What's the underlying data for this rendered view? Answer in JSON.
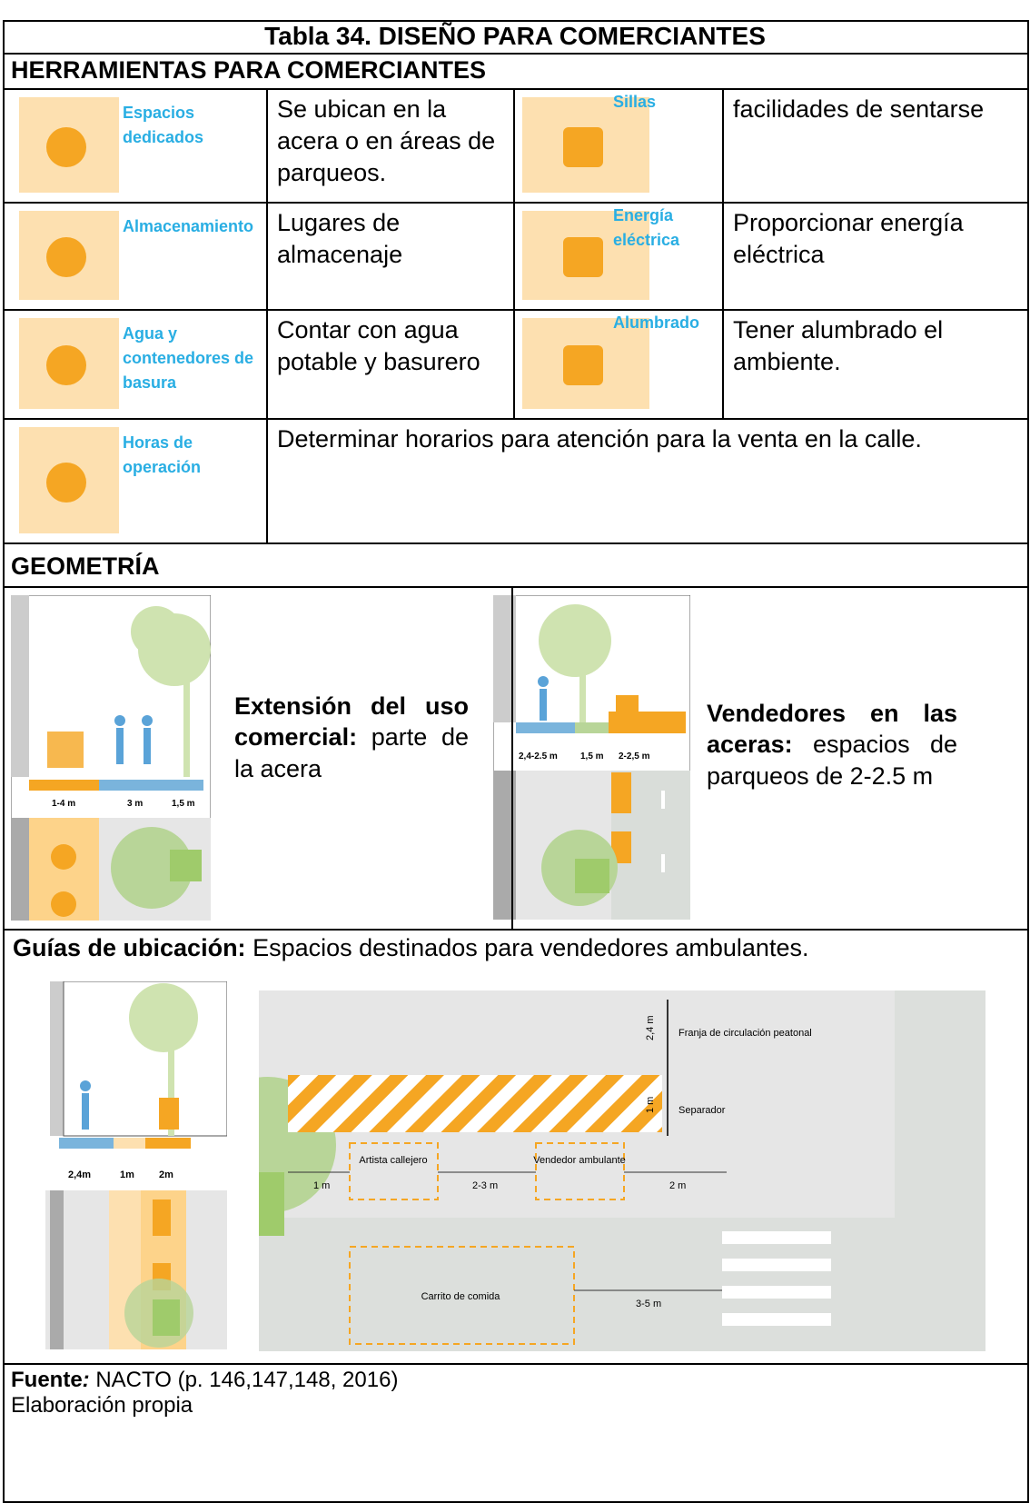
{
  "title": "Tabla 34.  DISEÑO PARA COMERCIANTES",
  "tools": {
    "heading": "HERRAMIENTAS PARA COMERCIANTES",
    "items": [
      {
        "label": "Espacios dedicados",
        "text": "Se ubican en la acera o en áreas de parqueos."
      },
      {
        "label": "Sillas",
        "text": "facilidades de sentarse"
      },
      {
        "label": "Almacenamiento",
        "text": "Lugares de almacenaje"
      },
      {
        "label": "Energía eléctrica",
        "text": "Proporcionar energía eléctrica"
      },
      {
        "label": "Agua y contenedores de basura",
        "text": "Contar con agua potable y basurero"
      },
      {
        "label": "Alumbrado",
        "text": "Tener alumbrado el ambiente."
      },
      {
        "label": "Horas de operación",
        "text": "Determinar horarios para atención para la venta en la calle."
      }
    ]
  },
  "geometry": {
    "heading": "GEOMETRÍA",
    "items": [
      {
        "bold": "Extensión del uso comercial:",
        "text": "parte de la acera",
        "dimensions": [
          "1-4 m",
          "3 m",
          "1,5 m"
        ]
      },
      {
        "bold": "Vendedores en las aceras:",
        "text": "espacios de parqueos de 2-2.5 m",
        "dimensions": [
          "2,4-2.5 m",
          "1,5 m",
          "2-2,5 m"
        ]
      }
    ]
  },
  "guides": {
    "bold": "Guías de ubicación:",
    "text": "Espacios destinados para vendedores ambulantes.",
    "section_dimensions": [
      "2,4m",
      "1m",
      "2m"
    ],
    "plan_labels": [
      "2,4 m",
      "Franja de circulación peatonal",
      "1 m",
      "Separador",
      "Artista callejero",
      "Vendedor ambulante",
      "1 m",
      "2-3 m",
      "2 m",
      "Carrito de comida",
      "3-5 m"
    ]
  },
  "footer": {
    "source_label": "Fuente",
    "colon": ":",
    "source": "NACTO (p. 146,147,148, 2016)",
    "note": "Elaboración propia"
  }
}
